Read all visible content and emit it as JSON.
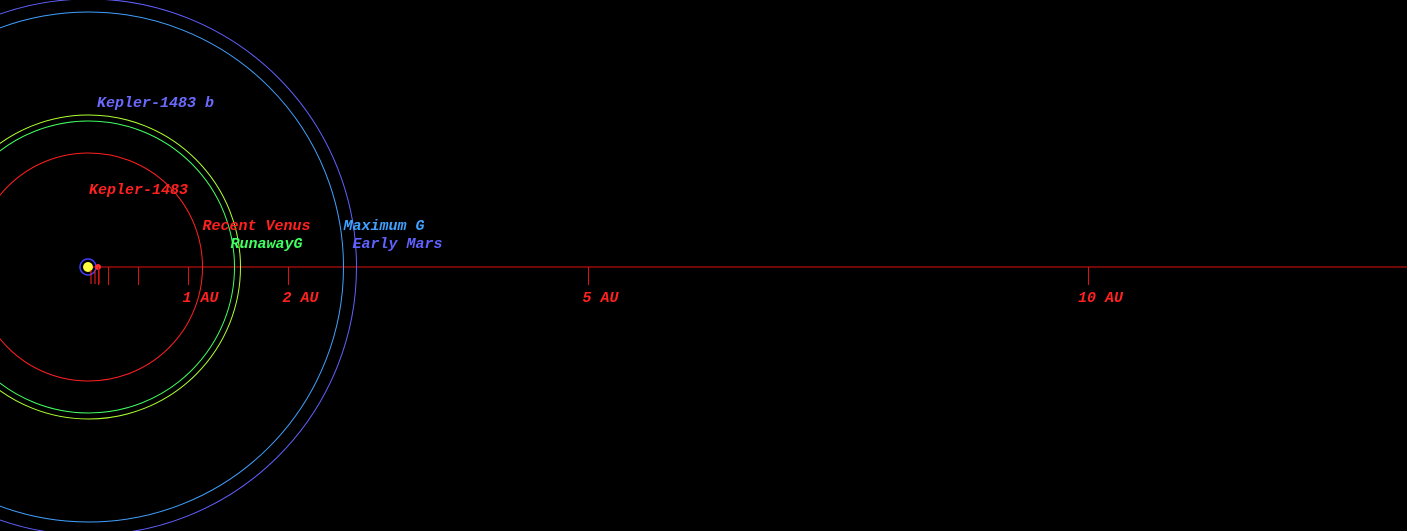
{
  "star": {
    "name": "Kepler-1483"
  },
  "planet": {
    "name": "Kepler-1483 b"
  },
  "zones": [
    {
      "name": "Recent Venus",
      "color": "#ff2020",
      "au": 1.14
    },
    {
      "name": "RunawayG",
      "color": "#40ff60",
      "au": 1.46
    },
    {
      "color": "#b0ff30",
      "au": 1.52
    },
    {
      "name": "Maximum G",
      "color": "#40a0ff",
      "au": 2.55
    },
    {
      "name": "Early Mars",
      "color": "#6060ff",
      "au": 2.68
    }
  ],
  "axis": {
    "ticks": [
      {
        "value": 1,
        "label": "1 AU"
      },
      {
        "value": 2,
        "label": "2 AU"
      },
      {
        "value": 5,
        "label": "5 AU"
      },
      {
        "value": 10,
        "label": "10 AU"
      }
    ],
    "minor_ticks": [
      0.1,
      0.2,
      0.5
    ]
  }
}
